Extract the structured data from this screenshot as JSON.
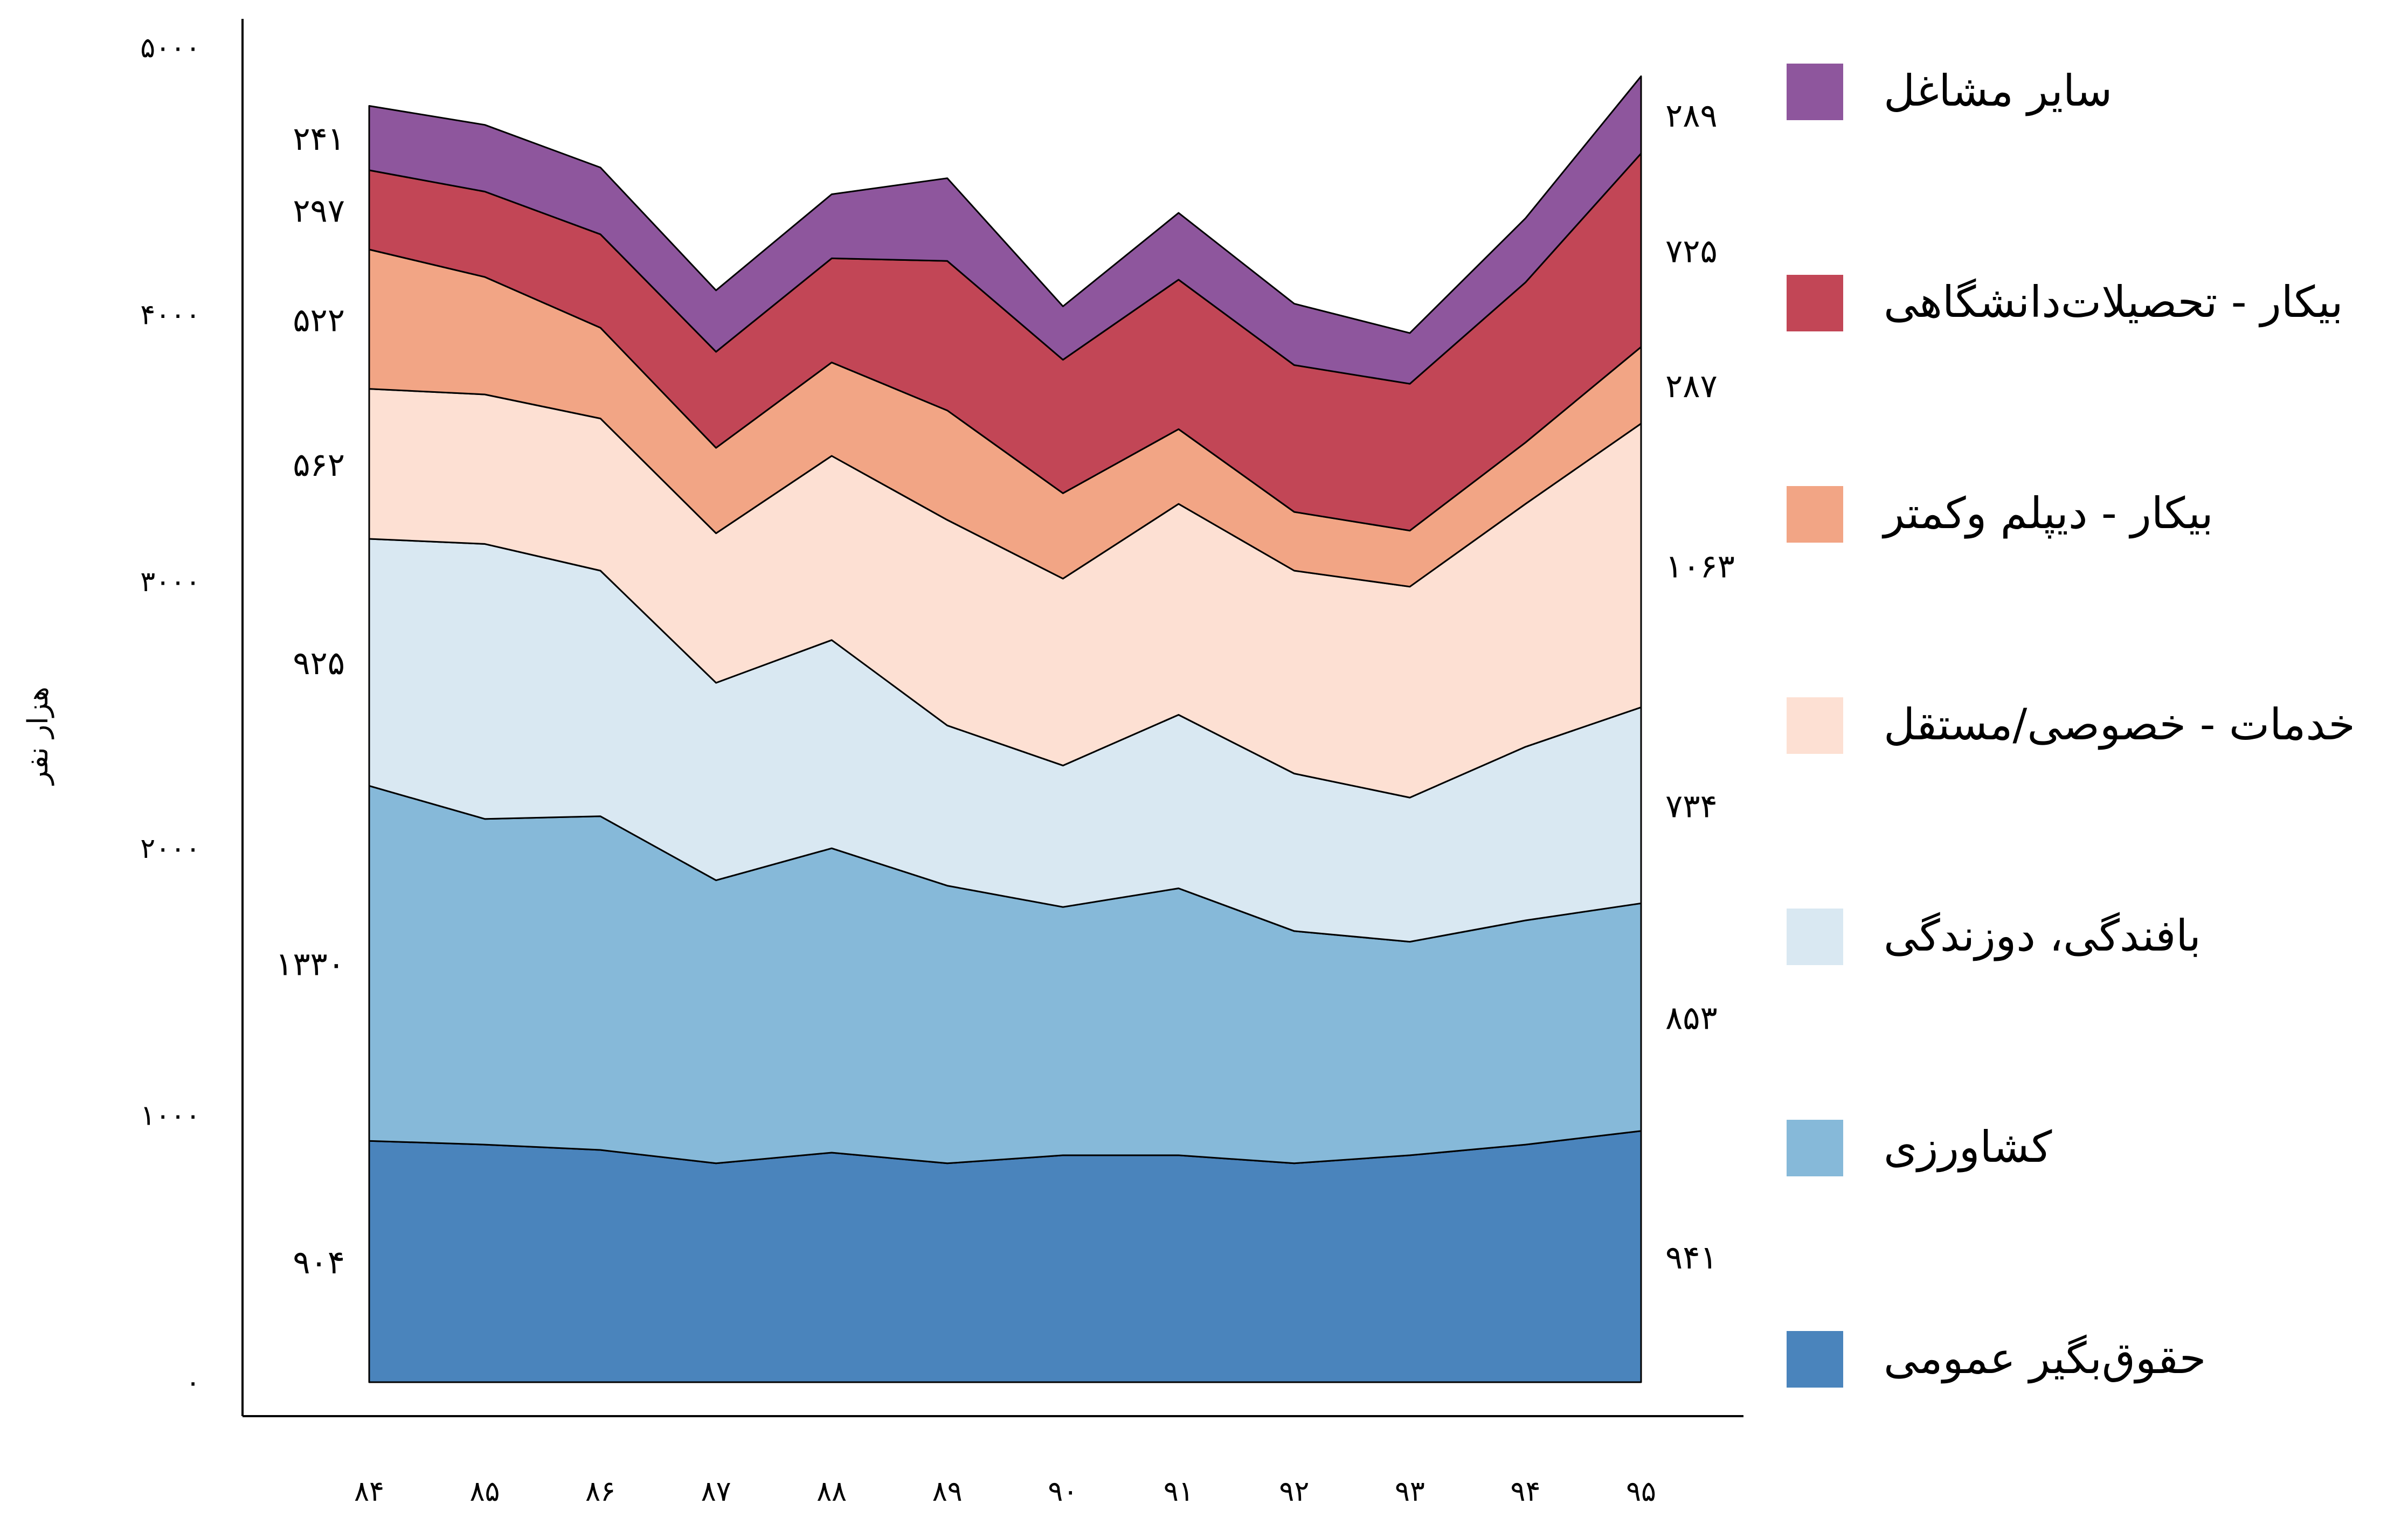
{
  "chart_data": {
    "type": "area",
    "title": "",
    "xlabel": "",
    "ylabel": "هزار نفر",
    "ylim": [
      0,
      5000
    ],
    "yticks": [
      0,
      1000,
      2000,
      3000,
      4000,
      5000
    ],
    "ytick_labels": [
      "۰",
      "۱۰۰۰",
      "۲۰۰۰",
      "۳۰۰۰",
      "۴۰۰۰",
      "۵۰۰۰"
    ],
    "categories": [
      "۸۴",
      "۸۵",
      "۸۶",
      "۸۷",
      "۸۸",
      "۸۹",
      "۹۰",
      "۹۱",
      "۹۲",
      "۹۳",
      "۹۴",
      "۹۵"
    ],
    "grid": false,
    "legend_position": "right",
    "series": [
      {
        "name": "حقوق‌بگیر عمومی",
        "color": "#4a84bc",
        "values": [
          904,
          890,
          870,
          820,
          860,
          820,
          850,
          850,
          820,
          850,
          890,
          941
        ]
      },
      {
        "name": "کشاورزی",
        "color": "#86b9d9",
        "values": [
          1330,
          1220,
          1250,
          1060,
          1140,
          1040,
          930,
          1000,
          870,
          800,
          840,
          853
        ]
      },
      {
        "name": "بافندگی، دوزندگی",
        "color": "#d9e8f2",
        "values": [
          925,
          1030,
          920,
          740,
          780,
          600,
          530,
          650,
          590,
          540,
          650,
          734
        ]
      },
      {
        "name": "خدمات - خصوصی/مستقل",
        "color": "#fde0d3",
        "values": [
          562,
          560,
          570,
          560,
          690,
          770,
          700,
          790,
          760,
          790,
          910,
          1063
        ]
      },
      {
        "name": "بیکار - دیپلم وکمتر",
        "color": "#f2a585",
        "values": [
          522,
          440,
          340,
          320,
          350,
          410,
          320,
          280,
          220,
          210,
          230,
          287
        ]
      },
      {
        "name": "بیکار - تحصیلات‌دانشگاهی",
        "color": "#c24656",
        "values": [
          297,
          320,
          350,
          360,
          390,
          560,
          500,
          560,
          550,
          550,
          600,
          725
        ]
      },
      {
        "name": "سایر مشاغل",
        "color": "#8e569d",
        "values": [
          241,
          250,
          250,
          230,
          240,
          310,
          200,
          250,
          230,
          190,
          240,
          289
        ]
      }
    ],
    "start_labels": [
      "۹۰۴",
      "۱۳۳۰",
      "۹۲۵",
      "۵۶۲",
      "۵۲۲",
      "۲۹۷",
      "۲۴۱"
    ],
    "end_labels": [
      "۹۴۱",
      "۸۵۳",
      "۷۳۴",
      "۱۰۶۳",
      "۲۸۷",
      "۷۲۵",
      "۲۸۹"
    ]
  }
}
